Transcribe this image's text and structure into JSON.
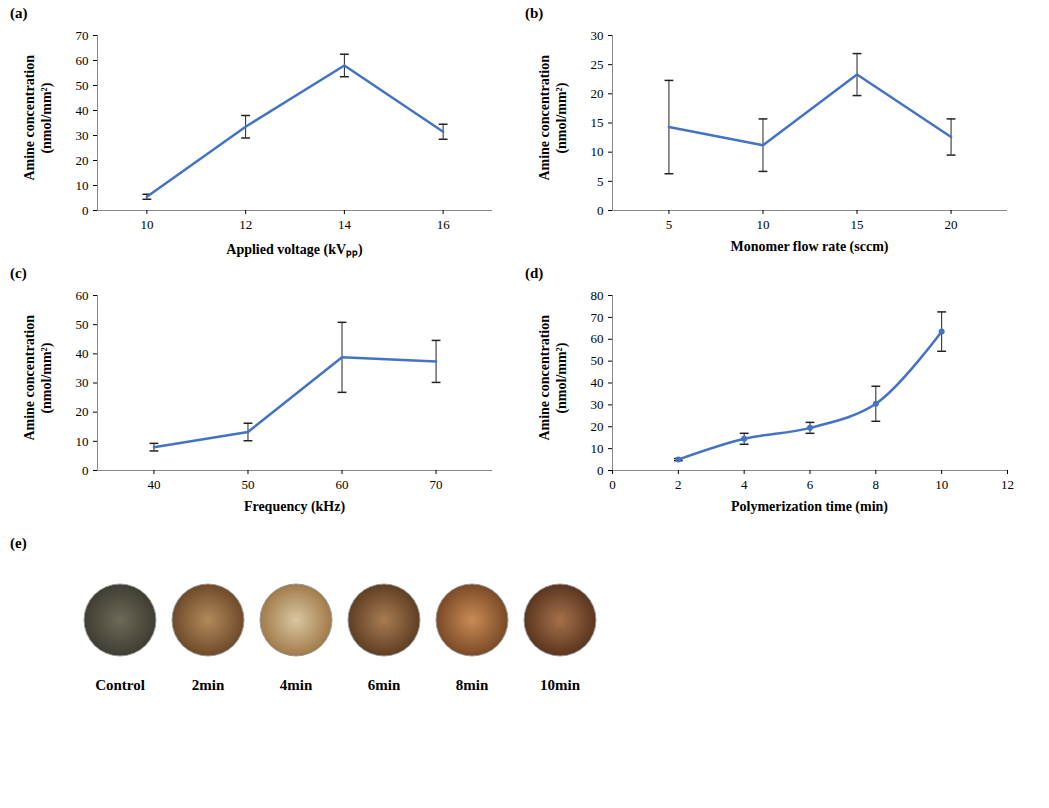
{
  "chart_data": [
    {
      "type": "line",
      "panel": "(a)",
      "x_label": "Applied voltage (kVₚₚ)",
      "y_label": "Amine concentration (nmol/mm²)",
      "x": [
        10,
        12,
        14,
        16
      ],
      "values": [
        5.5,
        33.5,
        58,
        31.5
      ],
      "errors": [
        1,
        4.5,
        4.5,
        3
      ],
      "color": "#4472c4",
      "xlim": [
        9,
        17
      ],
      "xticks": [
        10,
        12,
        14,
        16
      ],
      "ylim": [
        0,
        70
      ],
      "yticks": [
        0,
        10,
        20,
        30,
        40,
        50,
        60,
        70
      ],
      "grid": false
    },
    {
      "type": "line",
      "panel": "(b)",
      "x_label": "Monomer flow rate (sccm)",
      "y_label": "Amine concentration (nmol/mm²)",
      "x": [
        5,
        10,
        15,
        20
      ],
      "values": [
        14.3,
        11.2,
        23.3,
        12.6
      ],
      "errors": [
        8,
        4.5,
        3.6,
        3.1
      ],
      "color": "#4472c4",
      "xlim": [
        2,
        23
      ],
      "xticks": [
        5,
        10,
        15,
        20
      ],
      "ylim": [
        0,
        30
      ],
      "yticks": [
        0,
        5,
        10,
        15,
        20,
        25,
        30
      ],
      "grid": false
    },
    {
      "type": "line",
      "panel": "(c)",
      "x_label": "Frequency (kHz)",
      "y_label": "Amine concentration (nmol/mm²)",
      "x": [
        40,
        50,
        60,
        70
      ],
      "values": [
        8,
        13.2,
        38.8,
        37.4
      ],
      "errors": [
        1.3,
        3,
        12,
        7.2
      ],
      "color": "#4472c4",
      "xlim": [
        34,
        76
      ],
      "xticks": [
        40,
        50,
        60,
        70
      ],
      "ylim": [
        0,
        60
      ],
      "yticks": [
        0,
        10,
        20,
        30,
        40,
        50,
        60
      ],
      "grid": false
    },
    {
      "type": "line",
      "panel": "(d)",
      "x_label": "Polymerization time (min)",
      "y_label": "Amine concentration (nmol/mm²)",
      "x": [
        2,
        4,
        6,
        8,
        10
      ],
      "values": [
        5,
        14.5,
        19.5,
        30.5,
        63.5
      ],
      "errors": [
        0.5,
        2.5,
        2.5,
        8,
        9
      ],
      "color": "#4472c4",
      "marker": "circle",
      "line_style": "smooth",
      "xlim": [
        0,
        12
      ],
      "xticks": [
        0,
        2,
        4,
        6,
        8,
        10,
        12
      ],
      "ylim": [
        0,
        80
      ],
      "yticks": [
        0,
        10,
        20,
        30,
        40,
        50,
        60,
        70,
        80
      ],
      "grid": false
    }
  ],
  "photo_panel": {
    "panel": "(e)",
    "labels": [
      "Control",
      "2min",
      "4min",
      "6min",
      "8min",
      "10min"
    ]
  }
}
